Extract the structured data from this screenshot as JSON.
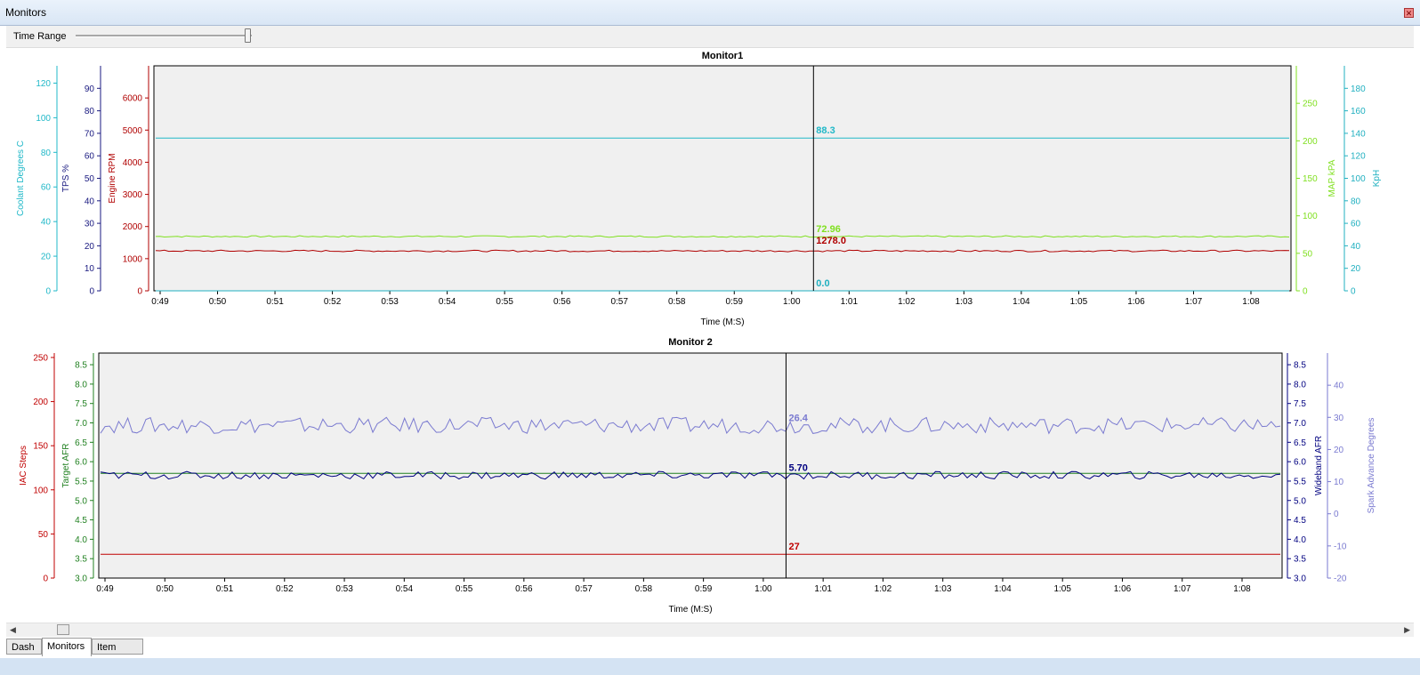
{
  "window": {
    "title": "Monitors",
    "close_icon": "close-icon"
  },
  "toolbar": {
    "time_range_label": "Time Range",
    "time_range_value": 0.96
  },
  "tabs": [
    {
      "label": "Dash",
      "active": false
    },
    {
      "label": "Monitors",
      "active": true
    },
    {
      "label": "Item Lists",
      "active": false
    }
  ],
  "colors": {
    "coolant": "#20b8c8",
    "tps": "#1a1a80",
    "rpm": "#b00000",
    "map": "#80e020",
    "kph": "#20b0c0",
    "iac": "#c00000",
    "target_afr": "#208020",
    "wideband": "#000080",
    "spark": "#7a7ad0"
  },
  "chart_data": [
    {
      "type": "line",
      "title": "Monitor1",
      "xlabel": "Time (M:S)",
      "x_ticks": [
        "0:49",
        "0:50",
        "0:51",
        "0:52",
        "0:53",
        "0:54",
        "0:55",
        "0:56",
        "0:57",
        "0:58",
        "0:59",
        "1:00",
        "1:01",
        "1:02",
        "1:03",
        "1:04",
        "1:05",
        "1:06",
        "1:07",
        "1:08"
      ],
      "cursor_x": "1:00",
      "axes": [
        {
          "id": "coolant",
          "label": "Coolant Degrees C",
          "side": "left",
          "ylim": [
            0,
            130
          ],
          "ticks": [
            "0",
            "20",
            "40",
            "60",
            "80",
            "100",
            "120"
          ]
        },
        {
          "id": "tps",
          "label": "TPS %",
          "side": "left",
          "ylim": [
            0,
            100
          ],
          "ticks": [
            "0",
            "10",
            "20",
            "30",
            "40",
            "50",
            "60",
            "70",
            "80",
            "90"
          ]
        },
        {
          "id": "rpm",
          "label": "Engine RPM",
          "side": "left",
          "ylim": [
            0,
            7000
          ],
          "ticks": [
            "0",
            "1000",
            "2000",
            "3000",
            "4000",
            "5000",
            "6000"
          ]
        },
        {
          "id": "map",
          "label": "MAP kPA",
          "side": "right",
          "ylim": [
            0,
            300
          ],
          "ticks": [
            "0",
            "50",
            "100",
            "150",
            "200",
            "250"
          ]
        },
        {
          "id": "kph",
          "label": "KpH",
          "side": "right",
          "ylim": [
            0,
            200
          ],
          "ticks": [
            "0",
            "20",
            "40",
            "60",
            "80",
            "100",
            "120",
            "140",
            "160",
            "180"
          ]
        }
      ],
      "series": [
        {
          "name": "Coolant Degrees C",
          "axis": "coolant",
          "base": 88.3,
          "jitter": 0,
          "cursor_label": "88.3"
        },
        {
          "name": "MAP kPA",
          "axis": "map",
          "base": 72.5,
          "jitter": 1.0,
          "cursor_label": "72.96"
        },
        {
          "name": "Engine RPM",
          "axis": "rpm",
          "base": 1240,
          "jitter": 25,
          "cursor_label": "1278.0"
        },
        {
          "name": "KpH",
          "axis": "kph",
          "base": 0,
          "jitter": 0,
          "cursor_label": "0.0"
        }
      ]
    },
    {
      "type": "line",
      "title": "Monitor 2",
      "xlabel": "Time (M:S)",
      "x_ticks": [
        "0:49",
        "0:50",
        "0:51",
        "0:52",
        "0:53",
        "0:54",
        "0:55",
        "0:56",
        "0:57",
        "0:58",
        "0:59",
        "1:00",
        "1:01",
        "1:02",
        "1:03",
        "1:04",
        "1:05",
        "1:06",
        "1:07",
        "1:08"
      ],
      "cursor_x": "1:00",
      "axes": [
        {
          "id": "iac",
          "label": "IAC Steps",
          "side": "left",
          "ylim": [
            0,
            255
          ],
          "ticks": [
            "0",
            "50",
            "100",
            "150",
            "200",
            "250"
          ]
        },
        {
          "id": "target",
          "label": "Target AFR",
          "side": "left",
          "ylim": [
            3,
            8.8
          ],
          "ticks": [
            "3.0",
            "3.5",
            "4.0",
            "4.5",
            "5.0",
            "5.5",
            "6.0",
            "6.5",
            "7.0",
            "7.5",
            "8.0",
            "8.5"
          ]
        },
        {
          "id": "wideband",
          "label": "Wideband AFR",
          "side": "right",
          "ylim": [
            3,
            8.8
          ],
          "ticks": [
            "3.0",
            "3.5",
            "4.0",
            "4.5",
            "5.0",
            "5.5",
            "6.0",
            "6.5",
            "7.0",
            "7.5",
            "8.0",
            "8.5"
          ]
        },
        {
          "id": "spark",
          "label": "Spark Advance Degrees",
          "side": "right",
          "ylim": [
            -20,
            50
          ],
          "ticks": [
            "-20",
            "-10",
            "0",
            "10",
            "20",
            "30",
            "40"
          ]
        }
      ],
      "series": [
        {
          "name": "Spark Advance Degrees",
          "axis": "spark",
          "base": 27.5,
          "jitter": 2.5,
          "cursor_label": "26.4"
        },
        {
          "name": "Target AFR",
          "axis": "target",
          "base": 5.7,
          "jitter": 0,
          "cursor_label": ""
        },
        {
          "name": "Wideband AFR",
          "axis": "wideband",
          "base": 5.65,
          "jitter": 0.1,
          "cursor_label": "5.70"
        },
        {
          "name": "IAC Steps",
          "axis": "iac",
          "base": 27,
          "jitter": 0,
          "cursor_label": "27"
        }
      ]
    }
  ]
}
